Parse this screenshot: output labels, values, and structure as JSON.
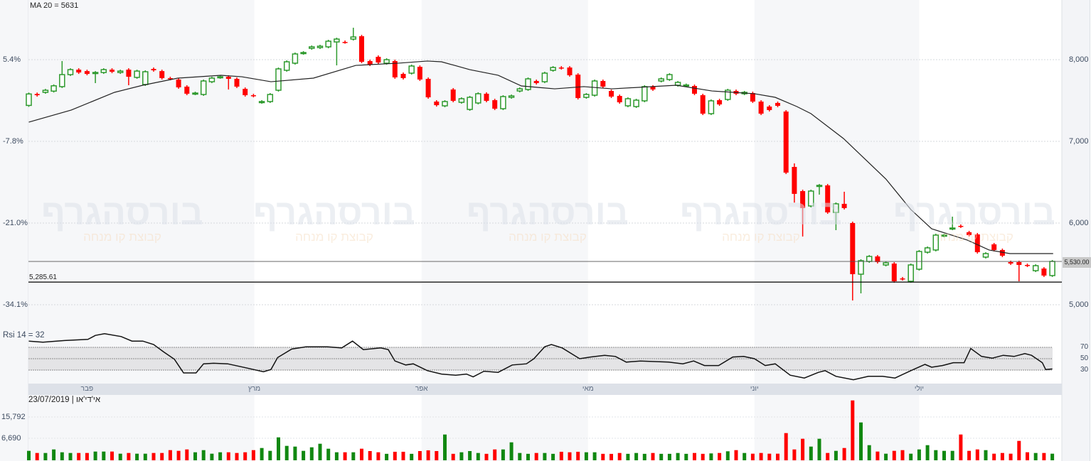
{
  "indicators": {
    "ma_label": "MA 20 = 5631",
    "rsi_label": "Rsi 14 = 32"
  },
  "footer": {
    "date_source": "23/07/2019 | אי'די'או"
  },
  "watermark": {
    "logo": "בורסהגרף",
    "tagline": "קבוצת קו מנחה"
  },
  "price_axis_left": [
    "5.4%",
    "-7.8%",
    "-21.0%",
    "-34.1%"
  ],
  "price_axis_right": [
    "8,000",
    "7,000",
    "6,000",
    "5,000"
  ],
  "rsi_axis": [
    "70",
    "50",
    "30"
  ],
  "volume_axis": [
    "15,792",
    "6,690"
  ],
  "current_price_label": "5,530.00",
  "support_label": "5,285.61",
  "colors": {
    "up": "#2e9a2e",
    "down": "#ff0000",
    "ma": "#222222",
    "current_price_line": "#c87830",
    "band": "#f6f7f9",
    "month_bar": "#dde1e8"
  },
  "chart_data": {
    "type": "candlestick",
    "months": [
      {
        "label": "פבר",
        "bar": 7
      },
      {
        "label": "מרץ",
        "bar": 27.1
      },
      {
        "label": "אפר",
        "bar": 47.2
      },
      {
        "label": "מאי",
        "bar": 67.2
      },
      {
        "label": "יוני",
        "bar": 87.2
      },
      {
        "label": "יולי",
        "bar": 107
      }
    ],
    "price_ticks": [
      8000,
      7000,
      6000,
      5000
    ],
    "percent_ticks": [
      5.4,
      -7.8,
      -21.0,
      -34.1
    ],
    "current_price": 5530,
    "support_level": 5285.61,
    "candles_open_close": [
      [
        7440,
        7580
      ],
      [
        7580,
        7565
      ],
      [
        7600,
        7625
      ],
      [
        7615,
        7680
      ],
      [
        7670,
        7817
      ],
      [
        7817,
        7878
      ],
      [
        7878,
        7843
      ],
      [
        7860,
        7826
      ],
      [
        7835,
        7843
      ],
      [
        7843,
        7878
      ],
      [
        7878,
        7852
      ],
      [
        7843,
        7860
      ],
      [
        7878,
        7791
      ],
      [
        7783,
        7860
      ],
      [
        7696,
        7852
      ],
      [
        7887,
        7870
      ],
      [
        7860,
        7774
      ],
      [
        7774,
        7765
      ],
      [
        7757,
        7661
      ],
      [
        7670,
        7583
      ],
      [
        7583,
        7591
      ],
      [
        7574,
        7739
      ],
      [
        7730,
        7774
      ],
      [
        7783,
        7791
      ],
      [
        7791,
        7765
      ],
      [
        7765,
        7670
      ],
      [
        7643,
        7565
      ],
      [
        7565,
        7556
      ],
      [
        7478,
        7487
      ],
      [
        7487,
        7574
      ],
      [
        7626,
        7887
      ],
      [
        7870,
        7974
      ],
      [
        7957,
        8070
      ],
      [
        8078,
        8087
      ],
      [
        8139,
        8157
      ],
      [
        8148,
        8165
      ],
      [
        8157,
        8226
      ],
      [
        8217,
        8252
      ],
      [
        8217,
        8213
      ],
      [
        8252,
        8278
      ],
      [
        8287,
        7974
      ],
      [
        7983,
        7939
      ],
      [
        8035,
        7965
      ],
      [
        7957,
        8000
      ],
      [
        7983,
        7783
      ],
      [
        7826,
        7774
      ],
      [
        7835,
        7922
      ],
      [
        7913,
        7757
      ],
      [
        7765,
        7539
      ],
      [
        7487,
        7443
      ],
      [
        7435,
        7487
      ],
      [
        7635,
        7496
      ],
      [
        7478,
        7522
      ],
      [
        7391,
        7539
      ],
      [
        7470,
        7583
      ],
      [
        7583,
        7496
      ],
      [
        7504,
        7400
      ],
      [
        7400,
        7548
      ],
      [
        7539,
        7556
      ],
      [
        7617,
        7643
      ],
      [
        7635,
        7765
      ],
      [
        7739,
        7713
      ],
      [
        7730,
        7835
      ],
      [
        7870,
        7904
      ],
      [
        7904,
        7896
      ],
      [
        7904,
        7809
      ],
      [
        7817,
        7530
      ],
      [
        7539,
        7574
      ],
      [
        7565,
        7739
      ],
      [
        7739,
        7670
      ],
      [
        7617,
        7548
      ],
      [
        7556,
        7478
      ],
      [
        7435,
        7522
      ],
      [
        7426,
        7504
      ],
      [
        7496,
        7670
      ],
      [
        7670,
        7635
      ],
      [
        7739,
        7765
      ],
      [
        7757,
        7817
      ],
      [
        7687,
        7722
      ],
      [
        7687,
        7690
      ],
      [
        7678,
        7583
      ],
      [
        7565,
        7339
      ],
      [
        7339,
        7496
      ],
      [
        7504,
        7452
      ],
      [
        7513,
        7626
      ],
      [
        7617,
        7583
      ],
      [
        7583,
        7600
      ],
      [
        7591,
        7487
      ],
      [
        7487,
        7339
      ],
      [
        7426,
        7383
      ],
      [
        7470,
        7435
      ],
      [
        7365,
        6617
      ],
      [
        6687,
        6357
      ],
      [
        6391,
        6183
      ],
      [
        6209,
        6391
      ],
      [
        6452,
        6461
      ],
      [
        6461,
        6130
      ],
      [
        6130,
        6235
      ],
      [
        6235,
        6183
      ],
      [
        6000,
        5374
      ],
      [
        5374,
        5539
      ],
      [
        5530,
        5591
      ],
      [
        5591,
        5522
      ],
      [
        5487,
        5513
      ],
      [
        5504,
        5287
      ],
      [
        5322,
        5313
      ],
      [
        5287,
        5487
      ],
      [
        5435,
        5652
      ],
      [
        5643,
        5696
      ],
      [
        5670,
        5852
      ],
      [
        5843,
        5852
      ],
      [
        5930,
        5939
      ],
      [
        5965,
        5957
      ],
      [
        5887,
        5852
      ],
      [
        5861,
        5643
      ],
      [
        5583,
        5626
      ],
      [
        5739,
        5670
      ],
      [
        5670,
        5600
      ],
      [
        5522,
        5504
      ],
      [
        5522,
        5487
      ],
      [
        5487,
        5478
      ],
      [
        5417,
        5478
      ],
      [
        5443,
        5357
      ],
      [
        5357,
        5530
      ]
    ],
    "wick_extremes": {
      "4": [
        7983,
        null
      ],
      "8": [
        null,
        7713
      ],
      "12": [
        null,
        7687
      ],
      "24": [
        null,
        7635
      ],
      "37": [
        null,
        7930
      ],
      "39": [
        8391,
        null
      ],
      "92": [
        6730,
        6250
      ],
      "93": [
        null,
        5835
      ],
      "95": [
        null,
        6348
      ],
      "97": [
        null,
        5913
      ],
      "98": [
        6383,
        null
      ],
      "99": [
        null,
        5052
      ],
      "100": [
        null,
        5139
      ],
      "111": [
        6078,
        null
      ],
      "119": [
        null,
        5287
      ]
    },
    "ma20": [
      [
        0,
        7235
      ],
      [
        5.1,
        7383
      ],
      [
        10.3,
        7600
      ],
      [
        13.7,
        7687
      ],
      [
        17.9,
        7774
      ],
      [
        23.1,
        7809
      ],
      [
        25.6,
        7791
      ],
      [
        29.1,
        7730
      ],
      [
        34.2,
        7774
      ],
      [
        39.3,
        7930
      ],
      [
        44.4,
        7957
      ],
      [
        47.9,
        7983
      ],
      [
        49.6,
        7974
      ],
      [
        53,
        7878
      ],
      [
        56.4,
        7809
      ],
      [
        59.2,
        7678
      ],
      [
        63.2,
        7643
      ],
      [
        66.7,
        7670
      ],
      [
        70.1,
        7643
      ],
      [
        77.8,
        7687
      ],
      [
        82.1,
        7617
      ],
      [
        87.2,
        7583
      ],
      [
        89.7,
        7539
      ],
      [
        92.3,
        7426
      ],
      [
        94,
        7339
      ],
      [
        97.9,
        7035
      ],
      [
        103,
        6539
      ],
      [
        106,
        6165
      ],
      [
        108.5,
        5930
      ],
      [
        112.8,
        5791
      ],
      [
        115.4,
        5670
      ],
      [
        117.9,
        5626
      ],
      [
        123.1,
        5626
      ]
    ],
    "rsi14": [
      [
        0,
        81
      ],
      [
        1.7,
        79
      ],
      [
        4.3,
        82
      ],
      [
        7.1,
        84
      ],
      [
        8,
        91
      ],
      [
        9.1,
        94
      ],
      [
        11.1,
        89
      ],
      [
        12.4,
        81
      ],
      [
        13.7,
        81
      ],
      [
        15,
        75
      ],
      [
        16.2,
        62
      ],
      [
        17.5,
        49
      ],
      [
        18.6,
        25
      ],
      [
        20.1,
        25
      ],
      [
        21,
        41
      ],
      [
        22.2,
        42
      ],
      [
        23.9,
        41
      ],
      [
        26.1,
        34
      ],
      [
        28.2,
        27
      ],
      [
        29.1,
        31
      ],
      [
        29.9,
        52
      ],
      [
        31.6,
        67
      ],
      [
        33.3,
        71
      ],
      [
        35.9,
        71
      ],
      [
        37.6,
        69
      ],
      [
        38.9,
        81
      ],
      [
        40.2,
        66
      ],
      [
        42.3,
        69
      ],
      [
        43.2,
        66
      ],
      [
        44,
        46
      ],
      [
        45.3,
        39
      ],
      [
        46.2,
        41
      ],
      [
        47.9,
        29
      ],
      [
        49.6,
        23
      ],
      [
        51.3,
        21
      ],
      [
        52.6,
        23
      ],
      [
        53.4,
        18
      ],
      [
        54.7,
        28
      ],
      [
        56.4,
        26
      ],
      [
        58.1,
        39
      ],
      [
        59.8,
        41
      ],
      [
        60.7,
        50
      ],
      [
        62,
        71
      ],
      [
        62.8,
        75
      ],
      [
        64.1,
        69
      ],
      [
        66.2,
        50
      ],
      [
        67.5,
        53
      ],
      [
        69.2,
        56
      ],
      [
        70.5,
        54
      ],
      [
        71.8,
        44
      ],
      [
        73.5,
        46
      ],
      [
        76.9,
        44
      ],
      [
        78.6,
        41
      ],
      [
        79.9,
        46
      ],
      [
        81.2,
        38
      ],
      [
        82.9,
        38
      ],
      [
        84.6,
        53
      ],
      [
        85.9,
        54
      ],
      [
        87.2,
        50
      ],
      [
        88.5,
        38
      ],
      [
        89.7,
        41
      ],
      [
        91.5,
        21
      ],
      [
        93.2,
        16
      ],
      [
        94.9,
        26
      ],
      [
        95.7,
        29
      ],
      [
        97,
        19
      ],
      [
        99.1,
        13
      ],
      [
        100.9,
        19
      ],
      [
        102.6,
        19
      ],
      [
        104.1,
        16
      ],
      [
        106,
        29
      ],
      [
        107.7,
        40
      ],
      [
        108.5,
        35
      ],
      [
        109.8,
        38
      ],
      [
        111.1,
        43
      ],
      [
        112.4,
        43
      ],
      [
        113.2,
        68
      ],
      [
        114.5,
        54
      ],
      [
        115.8,
        51
      ],
      [
        117.1,
        56
      ],
      [
        118.4,
        54
      ],
      [
        119.7,
        59
      ],
      [
        120.5,
        56
      ],
      [
        121.8,
        43
      ],
      [
        122.2,
        31
      ],
      [
        123,
        32
      ]
    ],
    "volume": [
      1320,
      410,
      410,
      1927,
      713,
      410,
      410,
      410,
      1017,
      1017,
      1017,
      106,
      410,
      106,
      106,
      410,
      410,
      1623,
      1320,
      1927,
      713,
      1623,
      106,
      713,
      713,
      410,
      713,
      1623,
      2533,
      1320,
      7084,
      3444,
      3140,
      1320,
      2837,
      4354,
      2230,
      713,
      713,
      713,
      2230,
      1229,
      713,
      50,
      926,
      926,
      50,
      1229,
      1532,
      1229,
      8298,
      50,
      713,
      1229,
      410,
      50,
      1927,
      1927,
      4961,
      410,
      50,
      410,
      410,
      50,
      926,
      713,
      926,
      713,
      713,
      50,
      30,
      410,
      50,
      410,
      50,
      410,
      50,
      50,
      410,
      50,
      410,
      50,
      228,
      410,
      1138,
      1623,
      410,
      106,
      410,
      106,
      106,
      8905,
      1927,
      6478,
      3140,
      6478,
      410,
      1320,
      2533,
      22862,
      13456,
      3747,
      1017,
      106,
      1320,
      1623,
      106,
      1927,
      3747,
      1623,
      1320,
      1320,
      8298,
      1320,
      1927,
      1623,
      106,
      410,
      106,
      5567,
      713,
      410,
      410,
      106
    ],
    "rsi_band": [
      30,
      70
    ],
    "volume_ticks": [
      15792,
      6690
    ]
  }
}
